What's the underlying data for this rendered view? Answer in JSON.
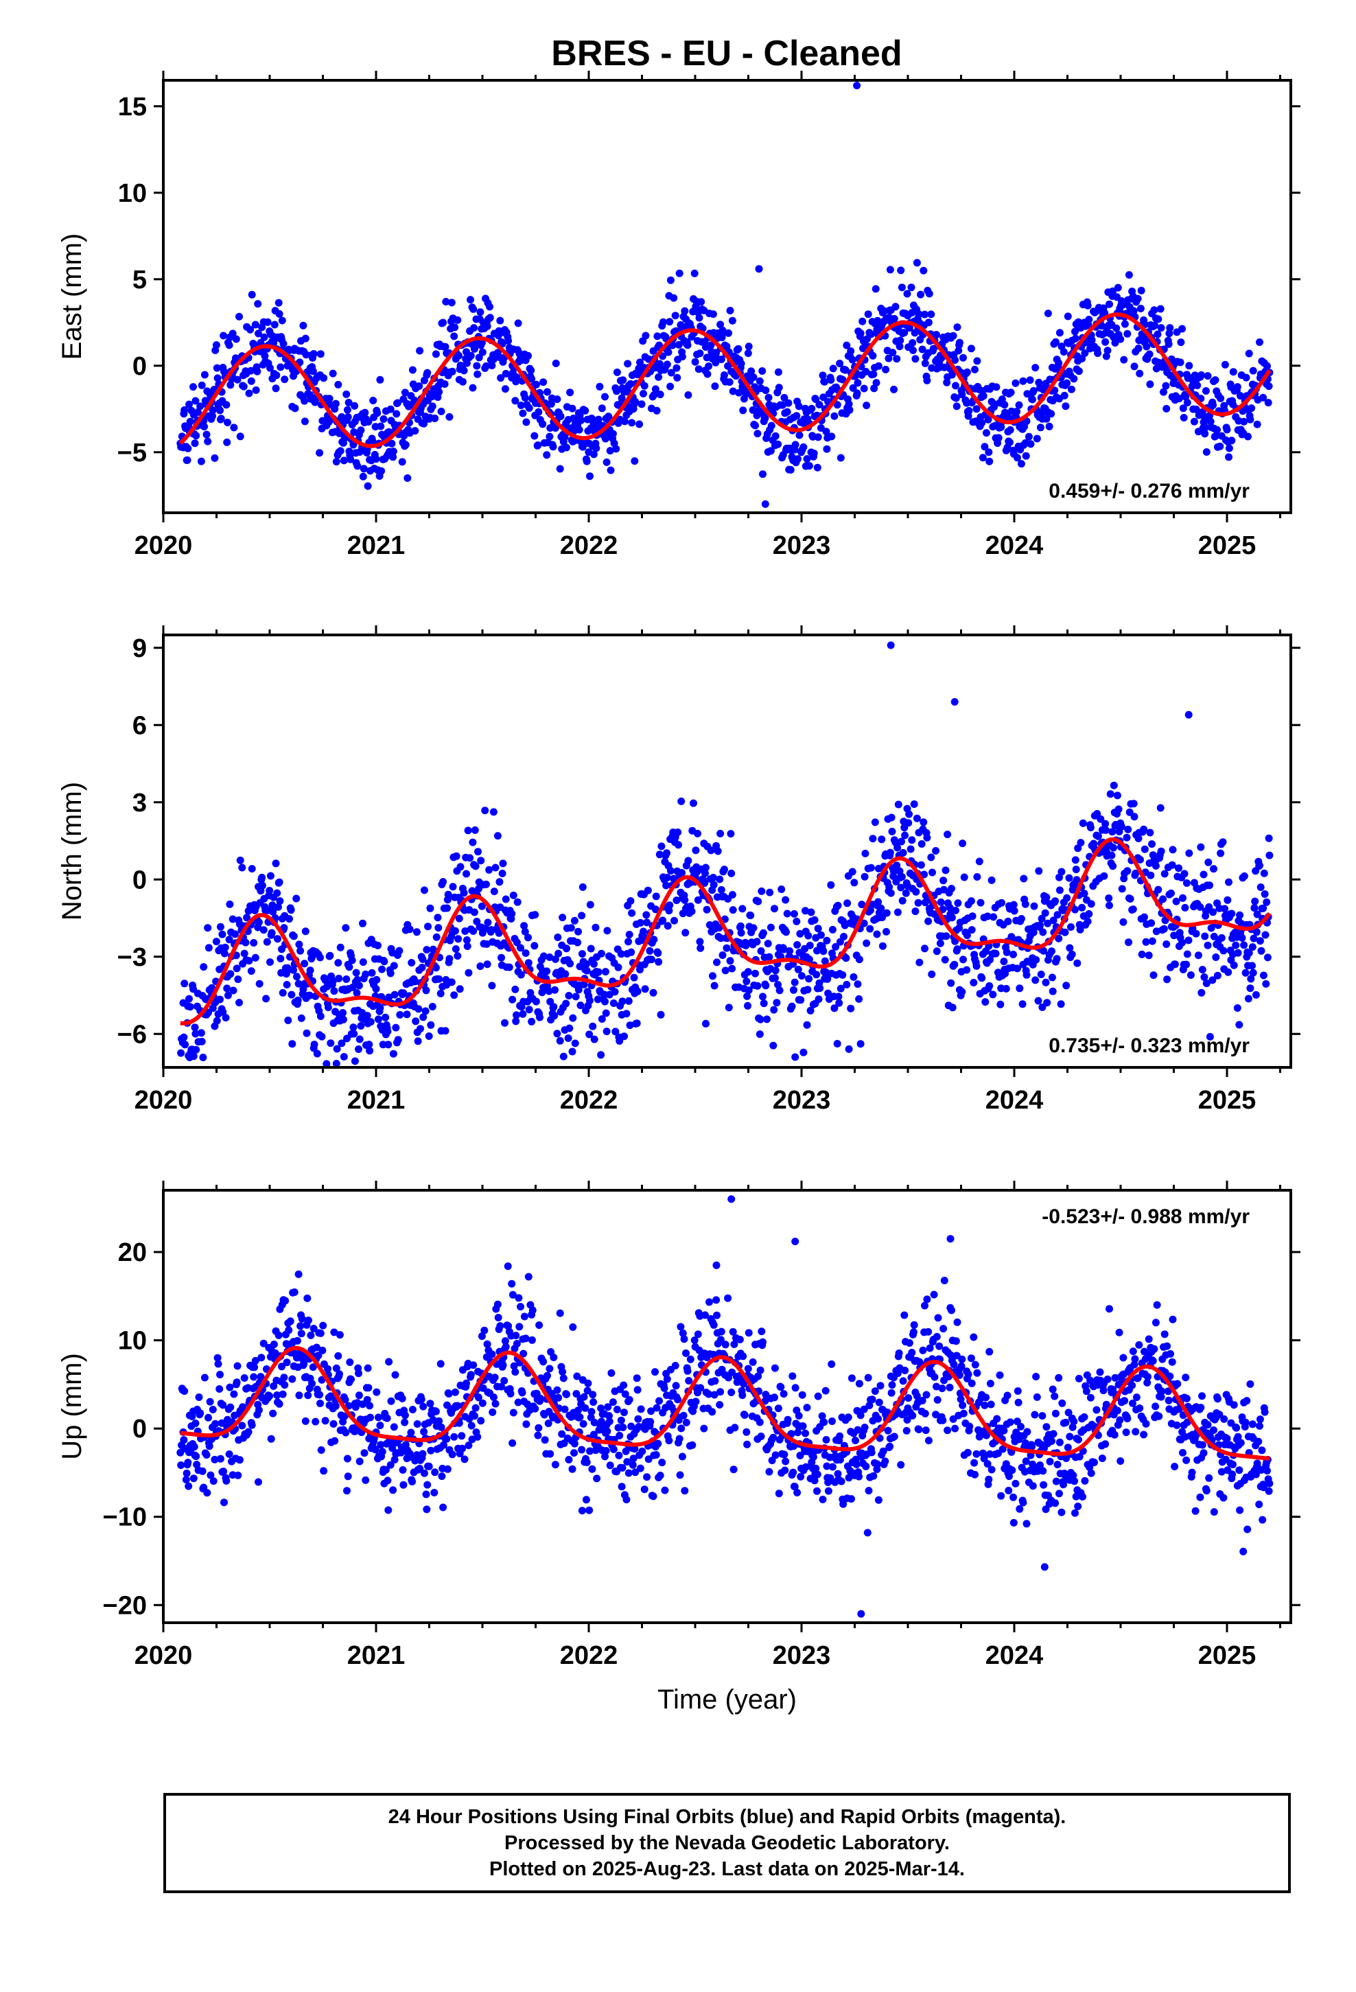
{
  "title": "BRES  - EU - Cleaned",
  "chart_data": [
    {
      "type": "scatter",
      "panel": "east",
      "ylabel": "East (mm)",
      "xlabel": "",
      "xlim": [
        2020.0,
        2025.3
      ],
      "ylim": [
        -8.5,
        16.5
      ],
      "yticks": [
        -5,
        0,
        5,
        10,
        15
      ],
      "xticks": [
        2020,
        2021,
        2022,
        2023,
        2024,
        2025
      ],
      "rate_text": "0.459+/- 0.276 mm/yr",
      "rate_position": "bottom-right",
      "series": [
        {
          "name": "Final Orbits",
          "color": "#0000ff",
          "style": "dots"
        },
        {
          "name": "Model fit",
          "color": "#ff0000",
          "style": "line"
        }
      ],
      "model": {
        "offset": -0.9,
        "trend": 0.459,
        "annual_amp": 3.0,
        "annual_peak": 0.48,
        "semi_amp": 0.0,
        "semi_peak": 0.0,
        "scatter": 1.25
      },
      "data_span": [
        2020.08,
        2025.2
      ],
      "outliers": [
        [
          2023.26,
          16.2
        ],
        [
          2022.83,
          -8.0
        ],
        [
          2022.8,
          5.6
        ]
      ]
    },
    {
      "type": "scatter",
      "panel": "north",
      "ylabel": "North (mm)",
      "xlabel": "",
      "xlim": [
        2020.0,
        2025.3
      ],
      "ylim": [
        -7.3,
        9.5
      ],
      "yticks": [
        -6,
        -3,
        0,
        3,
        6,
        9
      ],
      "xticks": [
        2020,
        2021,
        2022,
        2023,
        2024,
        2025
      ],
      "rate_text": "0.735+/- 0.323 mm/yr",
      "rate_position": "bottom-right",
      "series": [
        {
          "name": "Final Orbits",
          "color": "#0000ff",
          "style": "dots"
        },
        {
          "name": "Model fit",
          "color": "#ff0000",
          "style": "line"
        }
      ],
      "model": {
        "offset": -2.3,
        "trend": 0.735,
        "annual_amp": 1.8,
        "annual_peak": 0.47,
        "semi_amp": 0.7,
        "semi_peak": 0.45,
        "scatter": 1.4
      },
      "data_span": [
        2020.08,
        2025.2
      ],
      "outliers": [
        [
          2023.42,
          9.1
        ],
        [
          2023.72,
          6.9
        ],
        [
          2024.82,
          6.4
        ],
        [
          2022.97,
          -6.9
        ],
        [
          2022.55,
          -5.6
        ],
        [
          2024.88,
          -4.4
        ]
      ]
    },
    {
      "type": "scatter",
      "panel": "up",
      "ylabel": "Up (mm)",
      "xlabel": "Time (year)",
      "xlim": [
        2020.0,
        2025.3
      ],
      "ylim": [
        -22,
        27
      ],
      "yticks": [
        -20,
        -10,
        0,
        10,
        20
      ],
      "xticks": [
        2020,
        2021,
        2022,
        2023,
        2024,
        2025
      ],
      "rate_text": "-0.523+/- 0.988 mm/yr",
      "rate_position": "top-right",
      "series": [
        {
          "name": "Final Orbits",
          "color": "#0000ff",
          "style": "dots"
        },
        {
          "name": "Model fit",
          "color": "#ff0000",
          "style": "line"
        }
      ],
      "model": {
        "offset": 1.8,
        "trend": -0.523,
        "annual_amp": 5.0,
        "annual_peak": 0.63,
        "semi_amp": 1.3,
        "semi_peak": 0.12,
        "scatter": 3.6
      },
      "data_span": [
        2020.08,
        2025.2
      ],
      "outliers": [
        [
          2022.67,
          26.0
        ],
        [
          2023.28,
          -21.0
        ],
        [
          2023.7,
          21.5
        ],
        [
          2022.97,
          21.2
        ],
        [
          2022.6,
          18.5
        ],
        [
          2021.62,
          18.4
        ]
      ]
    }
  ],
  "footer": {
    "line1": "24 Hour Positions Using Final Orbits (blue) and Rapid Orbits (magenta).",
    "line2": "Processed by the Nevada Geodetic Laboratory.",
    "line3": "Plotted on 2025-Aug-23. Last data on 2025-Mar-14."
  }
}
